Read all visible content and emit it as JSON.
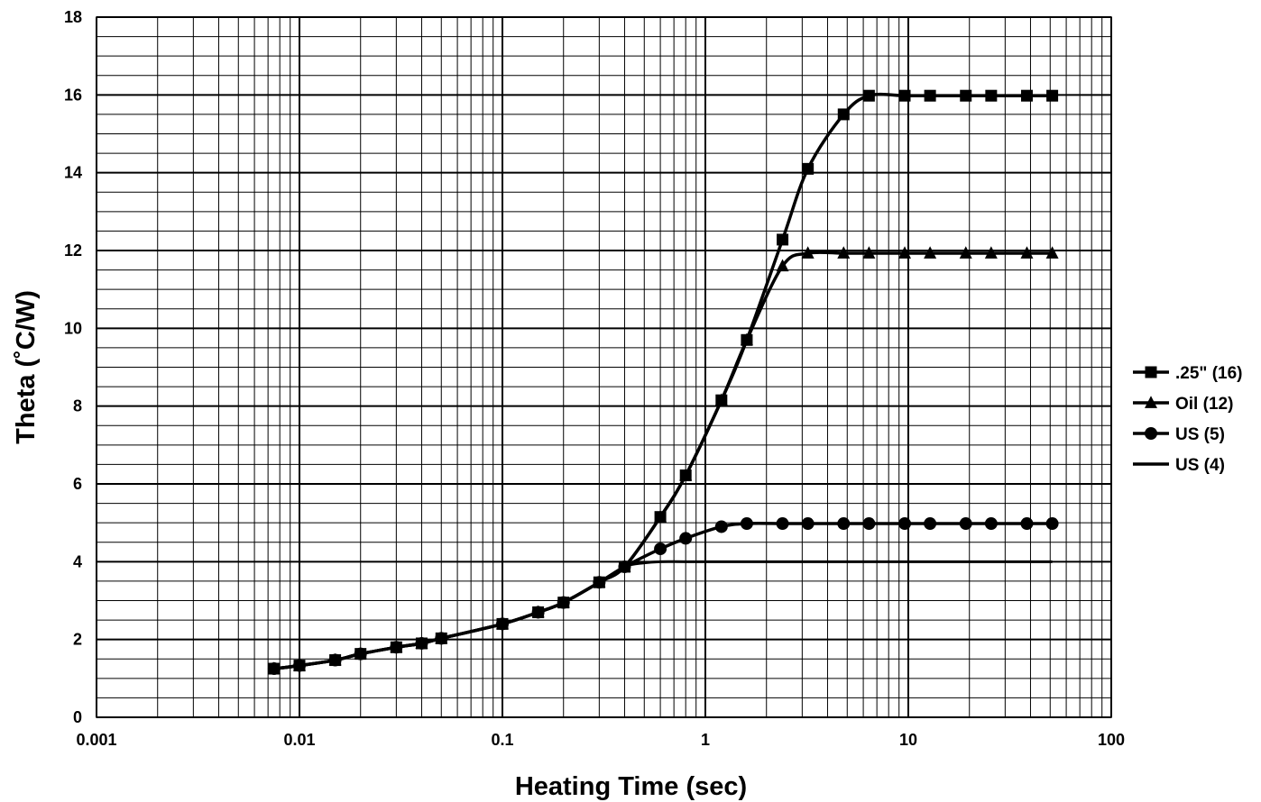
{
  "chart_data": {
    "type": "line",
    "title": "",
    "xlabel": "Heating Time (sec)",
    "ylabel": "Theta (˚C/W)",
    "x_scale": "log",
    "xlim": [
      0.001,
      100
    ],
    "ylim": [
      0,
      18
    ],
    "x_ticks": [
      0.001,
      0.01,
      0.1,
      1,
      10,
      100
    ],
    "x_tick_labels": [
      "0.001",
      "0.01",
      "0.1",
      "1",
      "10",
      "100"
    ],
    "y_ticks": [
      0,
      2,
      4,
      6,
      8,
      10,
      12,
      14,
      16,
      18
    ],
    "y_tick_labels": [
      "0",
      "2",
      "4",
      "6",
      "8",
      "10",
      "12",
      "14",
      "16",
      "18"
    ],
    "grid": true,
    "legend_position": "right",
    "series": [
      {
        "name": ".25\" (16)",
        "marker": "square",
        "x": [
          0.0075,
          0.01,
          0.015,
          0.02,
          0.03,
          0.04,
          0.05,
          0.1,
          0.15,
          0.2,
          0.3,
          0.4,
          0.6,
          0.8,
          1.2,
          1.6,
          2.4,
          3.2,
          4.8,
          6.4,
          9.6,
          12.8,
          19.2,
          25.6,
          38.4,
          51.2
        ],
        "y": [
          1.25,
          1.33,
          1.47,
          1.63,
          1.8,
          1.9,
          2.03,
          2.4,
          2.7,
          2.95,
          3.47,
          3.87,
          5.15,
          6.22,
          8.15,
          9.7,
          12.28,
          14.1,
          15.5,
          15.98,
          15.98,
          15.98,
          15.98,
          15.98,
          15.98,
          15.98
        ]
      },
      {
        "name": "Oil (12)",
        "marker": "triangle",
        "x": [
          0.0075,
          0.01,
          0.015,
          0.02,
          0.03,
          0.04,
          0.05,
          0.1,
          0.15,
          0.2,
          0.3,
          0.4,
          0.6,
          0.8,
          1.2,
          1.6,
          2.4,
          3.2,
          4.8,
          6.4,
          9.6,
          12.8,
          19.2,
          25.6,
          38.4,
          51.2
        ],
        "y": [
          1.25,
          1.33,
          1.47,
          1.63,
          1.8,
          1.9,
          2.03,
          2.4,
          2.7,
          2.95,
          3.47,
          3.87,
          5.15,
          6.22,
          8.15,
          9.7,
          11.6,
          11.93,
          11.93,
          11.93,
          11.93,
          11.93,
          11.93,
          11.93,
          11.93,
          11.93
        ]
      },
      {
        "name": "US (5)",
        "marker": "circle",
        "x": [
          0.0075,
          0.01,
          0.015,
          0.02,
          0.03,
          0.04,
          0.05,
          0.1,
          0.15,
          0.2,
          0.3,
          0.4,
          0.6,
          0.8,
          1.2,
          1.6,
          2.4,
          3.2,
          4.8,
          6.4,
          9.6,
          12.8,
          19.2,
          25.6,
          38.4,
          51.2
        ],
        "y": [
          1.25,
          1.33,
          1.47,
          1.63,
          1.8,
          1.9,
          2.03,
          2.4,
          2.7,
          2.95,
          3.47,
          3.87,
          4.33,
          4.6,
          4.9,
          4.98,
          4.98,
          4.98,
          4.98,
          4.98,
          4.98,
          4.98,
          4.98,
          4.98,
          4.98,
          4.98
        ]
      },
      {
        "name": "US (4)",
        "marker": "none",
        "x": [
          0.0075,
          0.01,
          0.015,
          0.02,
          0.03,
          0.04,
          0.05,
          0.1,
          0.15,
          0.2,
          0.3,
          0.4,
          0.5,
          0.6,
          0.8,
          1.2,
          1.6,
          2.4,
          3.2,
          4.8,
          6.4,
          9.6,
          12.8,
          19.2,
          25.6,
          38.4,
          51.2
        ],
        "y": [
          1.25,
          1.33,
          1.47,
          1.63,
          1.8,
          1.9,
          2.03,
          2.4,
          2.7,
          2.95,
          3.47,
          3.87,
          3.97,
          4.0,
          4.0,
          4.0,
          4.0,
          4.0,
          4.0,
          4.0,
          4.0,
          4.0,
          4.0,
          4.0,
          4.0,
          4.0,
          4.0
        ]
      }
    ]
  }
}
